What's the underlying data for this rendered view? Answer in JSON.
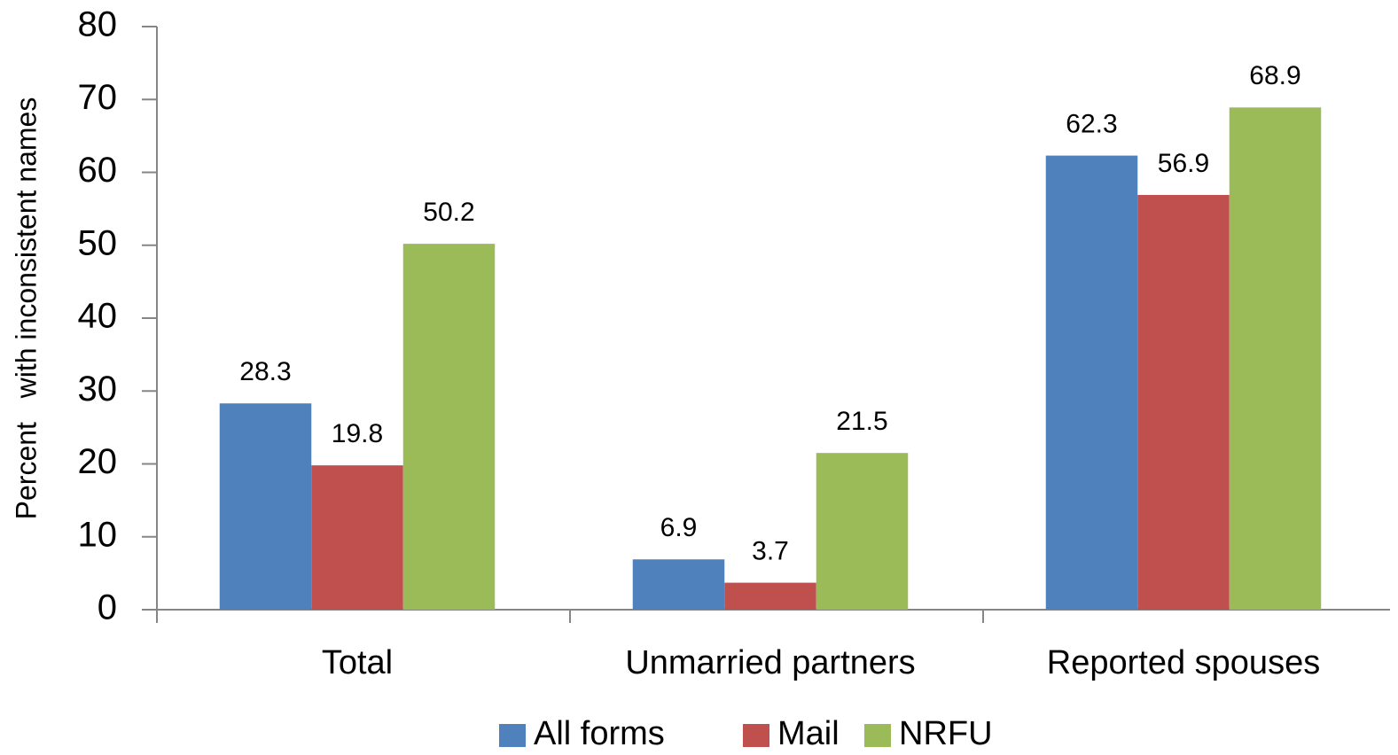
{
  "chart_data": {
    "type": "bar",
    "y_label": "Percent   with inconsistent names",
    "categories": [
      "Total",
      "Unmarried partners",
      "Reported spouses"
    ],
    "series": [
      {
        "name": "All forms",
        "color": "#4f81bd",
        "values": [
          28.3,
          6.9,
          62.3
        ]
      },
      {
        "name": "Mail",
        "color": "#c0504d",
        "values": [
          19.8,
          3.7,
          56.9
        ]
      },
      {
        "name": "NRFU",
        "color": "#9bbb59",
        "values": [
          50.2,
          21.5,
          68.9
        ]
      }
    ],
    "ylim": [
      0,
      80
    ],
    "yticks": [
      0,
      10,
      20,
      30,
      40,
      50,
      60,
      70,
      80
    ],
    "grid": false,
    "legend": "bottom"
  }
}
